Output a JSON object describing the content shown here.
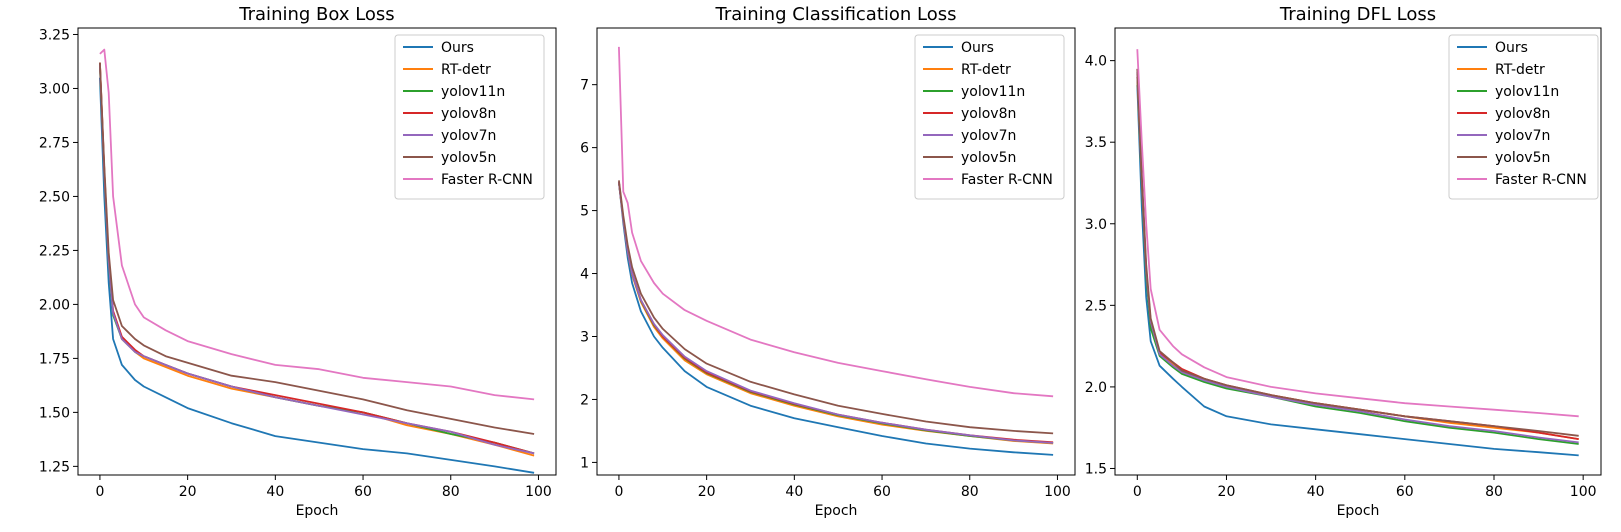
{
  "figure": {
    "legend_placement": "upper right",
    "grid": false
  },
  "chart_data": [
    {
      "type": "line",
      "title": "Training Box Loss",
      "xlabel": "Epoch",
      "ylabel": "",
      "xlim": [
        -5,
        104
      ],
      "ylim": [
        1.21,
        3.28
      ],
      "xticks": [
        0,
        20,
        40,
        60,
        80,
        100
      ],
      "yticks": [
        1.25,
        1.5,
        1.75,
        2.0,
        2.25,
        2.5,
        2.75,
        3.0,
        3.25
      ],
      "ytick_labels": [
        "1.25",
        "1.50",
        "1.75",
        "2.00",
        "2.25",
        "2.50",
        "2.75",
        "3.00",
        "3.25"
      ],
      "x": [
        0,
        1,
        2,
        3,
        5,
        8,
        10,
        15,
        20,
        30,
        40,
        50,
        60,
        70,
        80,
        90,
        99
      ],
      "series": [
        {
          "name": "Ours",
          "color": "#1f77b4",
          "values": [
            3.05,
            2.5,
            2.1,
            1.84,
            1.72,
            1.65,
            1.62,
            1.57,
            1.52,
            1.45,
            1.39,
            1.36,
            1.33,
            1.31,
            1.28,
            1.25,
            1.22
          ]
        },
        {
          "name": "RT-detr",
          "color": "#ff7f0e",
          "values": [
            3.12,
            2.62,
            2.2,
            1.96,
            1.84,
            1.78,
            1.75,
            1.71,
            1.67,
            1.61,
            1.57,
            1.53,
            1.5,
            1.44,
            1.4,
            1.35,
            1.3
          ]
        },
        {
          "name": "yolov11n",
          "color": "#2ca02c",
          "values": [
            3.1,
            2.6,
            2.19,
            1.95,
            1.84,
            1.78,
            1.76,
            1.72,
            1.68,
            1.62,
            1.57,
            1.53,
            1.5,
            1.45,
            1.4,
            1.36,
            1.31
          ]
        },
        {
          "name": "yolov8n",
          "color": "#d62728",
          "values": [
            3.12,
            2.62,
            2.21,
            1.97,
            1.85,
            1.79,
            1.76,
            1.72,
            1.68,
            1.62,
            1.58,
            1.54,
            1.5,
            1.45,
            1.41,
            1.36,
            1.31
          ]
        },
        {
          "name": "yolov7n",
          "color": "#9467bd",
          "values": [
            3.11,
            2.61,
            2.2,
            1.96,
            1.84,
            1.78,
            1.76,
            1.72,
            1.68,
            1.62,
            1.57,
            1.53,
            1.49,
            1.45,
            1.41,
            1.35,
            1.31
          ]
        },
        {
          "name": "yolov5n",
          "color": "#8c564b",
          "values": [
            3.12,
            2.64,
            2.24,
            2.02,
            1.9,
            1.84,
            1.81,
            1.76,
            1.73,
            1.67,
            1.64,
            1.6,
            1.56,
            1.51,
            1.47,
            1.43,
            1.4
          ]
        },
        {
          "name": "Faster R-CNN",
          "color": "#e377c2",
          "values": [
            3.16,
            3.18,
            2.98,
            2.5,
            2.18,
            2.0,
            1.94,
            1.88,
            1.83,
            1.77,
            1.72,
            1.7,
            1.66,
            1.64,
            1.62,
            1.58,
            1.56
          ]
        }
      ]
    },
    {
      "type": "line",
      "title": "Training Classification Loss",
      "xlabel": "Epoch",
      "ylabel": "",
      "xlim": [
        -5,
        104
      ],
      "ylim": [
        0.8,
        7.9
      ],
      "xticks": [
        0,
        20,
        40,
        60,
        80,
        100
      ],
      "yticks": [
        1,
        2,
        3,
        4,
        5,
        6,
        7
      ],
      "ytick_labels": [
        "1",
        "2",
        "3",
        "4",
        "5",
        "6",
        "7"
      ],
      "x": [
        0,
        1,
        2,
        3,
        5,
        8,
        10,
        15,
        20,
        30,
        40,
        50,
        60,
        70,
        80,
        90,
        99
      ],
      "series": [
        {
          "name": "Ours",
          "color": "#1f77b4",
          "values": [
            5.45,
            4.8,
            4.25,
            3.85,
            3.4,
            3.0,
            2.82,
            2.45,
            2.2,
            1.9,
            1.7,
            1.56,
            1.42,
            1.3,
            1.22,
            1.16,
            1.12
          ]
        },
        {
          "name": "RT-detr",
          "color": "#ff7f0e",
          "values": [
            5.45,
            4.85,
            4.35,
            3.98,
            3.55,
            3.15,
            2.97,
            2.62,
            2.4,
            2.1,
            1.9,
            1.73,
            1.6,
            1.5,
            1.42,
            1.34,
            1.3
          ]
        },
        {
          "name": "yolov11n",
          "color": "#2ca02c",
          "values": [
            5.45,
            4.86,
            4.36,
            4.0,
            3.57,
            3.18,
            3.0,
            2.65,
            2.42,
            2.12,
            1.92,
            1.75,
            1.62,
            1.51,
            1.42,
            1.35,
            1.31
          ]
        },
        {
          "name": "yolov8n",
          "color": "#d62728",
          "values": [
            5.45,
            4.87,
            4.37,
            4.01,
            3.58,
            3.19,
            3.0,
            2.66,
            2.43,
            2.13,
            1.93,
            1.76,
            1.63,
            1.52,
            1.43,
            1.36,
            1.32
          ]
        },
        {
          "name": "yolov7n",
          "color": "#9467bd",
          "values": [
            5.45,
            4.86,
            4.36,
            4.0,
            3.58,
            3.2,
            3.02,
            2.68,
            2.45,
            2.14,
            1.94,
            1.76,
            1.63,
            1.52,
            1.43,
            1.35,
            1.31
          ]
        },
        {
          "name": "yolov5n",
          "color": "#8c564b",
          "values": [
            5.48,
            4.92,
            4.45,
            4.1,
            3.68,
            3.3,
            3.12,
            2.8,
            2.57,
            2.28,
            2.08,
            1.9,
            1.77,
            1.65,
            1.56,
            1.5,
            1.46
          ]
        },
        {
          "name": "Faster R-CNN",
          "color": "#e377c2",
          "values": [
            7.6,
            5.3,
            5.12,
            4.65,
            4.2,
            3.85,
            3.68,
            3.42,
            3.25,
            2.95,
            2.75,
            2.58,
            2.45,
            2.32,
            2.2,
            2.1,
            2.05
          ]
        }
      ]
    },
    {
      "type": "line",
      "title": "Training DFL Loss",
      "xlabel": "Epoch",
      "ylabel": "",
      "xlim": [
        -5,
        104
      ],
      "ylim": [
        1.46,
        4.2
      ],
      "xticks": [
        0,
        20,
        40,
        60,
        80,
        100
      ],
      "yticks": [
        1.5,
        2.0,
        2.5,
        3.0,
        3.5,
        4.0
      ],
      "ytick_labels": [
        "1.5",
        "2.0",
        "2.5",
        "3.0",
        "3.5",
        "4.0"
      ],
      "x": [
        0,
        1,
        2,
        3,
        5,
        8,
        10,
        15,
        20,
        30,
        40,
        50,
        60,
        70,
        80,
        90,
        99
      ],
      "series": [
        {
          "name": "Ours",
          "color": "#1f77b4",
          "values": [
            3.85,
            3.1,
            2.55,
            2.28,
            2.13,
            2.05,
            2.0,
            1.88,
            1.82,
            1.77,
            1.74,
            1.71,
            1.68,
            1.65,
            1.62,
            1.6,
            1.58
          ]
        },
        {
          "name": "RT-detr",
          "color": "#ff7f0e",
          "values": [
            3.9,
            3.25,
            2.7,
            2.38,
            2.2,
            2.14,
            2.1,
            2.05,
            2.0,
            1.95,
            1.9,
            1.86,
            1.82,
            1.78,
            1.75,
            1.72,
            1.68
          ]
        },
        {
          "name": "yolov11n",
          "color": "#2ca02c",
          "values": [
            3.9,
            3.24,
            2.68,
            2.36,
            2.19,
            2.12,
            2.08,
            2.03,
            1.99,
            1.94,
            1.88,
            1.84,
            1.79,
            1.75,
            1.72,
            1.68,
            1.65
          ]
        },
        {
          "name": "yolov8n",
          "color": "#d62728",
          "values": [
            3.92,
            3.27,
            2.72,
            2.4,
            2.21,
            2.15,
            2.11,
            2.05,
            2.01,
            1.95,
            1.9,
            1.86,
            1.82,
            1.79,
            1.76,
            1.72,
            1.68
          ]
        },
        {
          "name": "yolov7n",
          "color": "#9467bd",
          "values": [
            3.93,
            3.28,
            2.72,
            2.4,
            2.2,
            2.13,
            2.09,
            2.04,
            2.0,
            1.94,
            1.89,
            1.85,
            1.8,
            1.76,
            1.73,
            1.69,
            1.66
          ]
        },
        {
          "name": "yolov5n",
          "color": "#8c564b",
          "values": [
            3.95,
            3.3,
            2.75,
            2.42,
            2.22,
            2.15,
            2.1,
            2.05,
            2.01,
            1.95,
            1.9,
            1.86,
            1.82,
            1.79,
            1.76,
            1.73,
            1.7
          ]
        },
        {
          "name": "Faster R-CNN",
          "color": "#e377c2",
          "values": [
            4.07,
            3.5,
            3.0,
            2.6,
            2.35,
            2.25,
            2.2,
            2.12,
            2.06,
            2.0,
            1.96,
            1.93,
            1.9,
            1.88,
            1.86,
            1.84,
            1.82
          ]
        }
      ]
    }
  ]
}
